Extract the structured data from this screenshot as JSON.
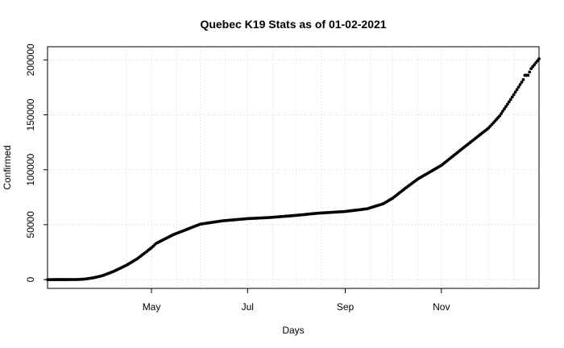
{
  "chart_data": {
    "type": "scatter",
    "title": "Quebec K19 Stats as of 01-02-2021",
    "xlabel": "Days",
    "ylabel": "Confirmed",
    "x_range": [
      "2020-02-25",
      "2021-01-02"
    ],
    "ylim": [
      -8000,
      212000
    ],
    "x_ticks": [
      {
        "date": "2020-05-01",
        "label": "May"
      },
      {
        "date": "2020-07-01",
        "label": "Jul"
      },
      {
        "date": "2020-09-01",
        "label": "Sep"
      },
      {
        "date": "2020-11-01",
        "label": "Nov"
      }
    ],
    "y_ticks": [
      0,
      50000,
      100000,
      150000,
      200000
    ],
    "y_tick_labels": [
      "0",
      "50000",
      "100000",
      "150000",
      "200000"
    ],
    "x_grid": [
      "2020-04-15",
      "2020-05-01",
      "2020-05-17",
      "2020-06-01",
      "2020-06-17",
      "2020-07-01",
      "2020-07-17",
      "2020-08-01",
      "2020-08-17",
      "2020-09-01",
      "2020-09-17",
      "2020-10-01",
      "2020-10-17",
      "2020-11-01",
      "2020-11-17",
      "2020-12-01",
      "2020-12-17"
    ],
    "grid": true,
    "marker_color": "#000000",
    "series": [
      {
        "points": [
          [
            "2020-02-25",
            0
          ],
          [
            "2020-03-10",
            20
          ],
          [
            "2020-03-15",
            80
          ],
          [
            "2020-03-20",
            500
          ],
          [
            "2020-03-25",
            1600
          ],
          [
            "2020-03-31",
            3600
          ],
          [
            "2020-04-07",
            7500
          ],
          [
            "2020-04-15",
            13000
          ],
          [
            "2020-04-22",
            19000
          ],
          [
            "2020-05-01",
            29000
          ],
          [
            "2020-05-04",
            33000
          ],
          [
            "2020-05-15",
            41000
          ],
          [
            "2020-06-01",
            50500
          ],
          [
            "2020-06-15",
            53500
          ],
          [
            "2020-07-01",
            55500
          ],
          [
            "2020-07-15",
            56500
          ],
          [
            "2020-08-01",
            58500
          ],
          [
            "2020-08-15",
            60500
          ],
          [
            "2020-09-01",
            62000
          ],
          [
            "2020-09-15",
            64500
          ],
          [
            "2020-09-25",
            69000
          ],
          [
            "2020-10-01",
            74000
          ],
          [
            "2020-10-09",
            83000
          ],
          [
            "2020-10-17",
            91500
          ],
          [
            "2020-11-01",
            104000
          ],
          [
            "2020-11-15",
            120000
          ],
          [
            "2020-12-01",
            138000
          ],
          [
            "2020-12-08",
            149000
          ],
          [
            "2020-12-15",
            164000
          ],
          [
            "2020-12-23",
            182000
          ],
          [
            "2020-12-24",
            186000
          ],
          [
            "2020-12-26",
            186000
          ],
          [
            "2020-12-28",
            192000
          ],
          [
            "2021-01-02",
            201000
          ]
        ]
      }
    ]
  }
}
